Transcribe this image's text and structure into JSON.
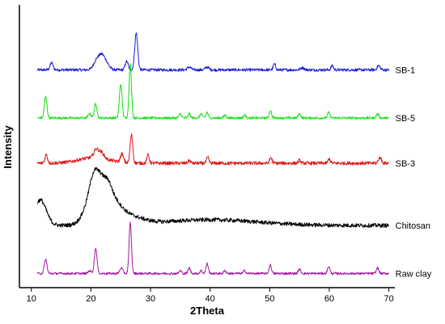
{
  "chart_data": {
    "type": "line",
    "xlabel": "2Theta",
    "ylabel": "Intensity",
    "xlim": [
      8,
      71
    ],
    "ylim": [
      0,
      100
    ],
    "xticks": [
      10,
      20,
      30,
      40,
      50,
      60,
      70
    ],
    "grid": false,
    "series": [
      {
        "name": "SB-1",
        "color": "#1a1adb",
        "baseline": 77,
        "noise": 0.5,
        "peaks": [
          [
            13.4,
            2.5,
            0.25
          ],
          [
            20.9,
            3,
            0.5
          ],
          [
            21.8,
            4.5,
            0.5
          ],
          [
            22.6,
            2,
            0.5
          ],
          [
            26.0,
            3,
            0.25
          ],
          [
            27.6,
            13,
            0.25
          ],
          [
            36.5,
            1,
            0.3
          ],
          [
            39.5,
            1,
            0.3
          ],
          [
            50.8,
            2,
            0.2
          ],
          [
            55.5,
            0.8,
            0.3
          ],
          [
            60.5,
            1.5,
            0.2
          ],
          [
            68.3,
            1.5,
            0.25
          ]
        ],
        "bumps": []
      },
      {
        "name": "SB-5",
        "color": "#11e011",
        "baseline": 60,
        "noise": 0.4,
        "peaks": [
          [
            12.4,
            7.5,
            0.22
          ],
          [
            19.8,
            1.5,
            0.25
          ],
          [
            20.8,
            5,
            0.22
          ],
          [
            25.0,
            12,
            0.22
          ],
          [
            26.6,
            19,
            0.2
          ],
          [
            35.0,
            1.5,
            0.2
          ],
          [
            36.5,
            1.5,
            0.2
          ],
          [
            38.5,
            1.5,
            0.2
          ],
          [
            39.5,
            2,
            0.2
          ],
          [
            42.5,
            1,
            0.2
          ],
          [
            45.8,
            1,
            0.2
          ],
          [
            50.1,
            2.5,
            0.2
          ],
          [
            55.0,
            1.5,
            0.2
          ],
          [
            59.9,
            2,
            0.2
          ],
          [
            68.1,
            1.5,
            0.2
          ]
        ],
        "bumps": []
      },
      {
        "name": "SB-3",
        "color": "#e01616",
        "baseline": 44,
        "noise": 0.6,
        "peaks": [
          [
            12.5,
            3,
            0.22
          ],
          [
            20.9,
            3,
            0.4
          ],
          [
            21.8,
            2,
            0.4
          ],
          [
            25.2,
            3,
            0.25
          ],
          [
            26.8,
            10,
            0.22
          ],
          [
            29.6,
            3,
            0.2
          ],
          [
            36.5,
            1,
            0.2
          ],
          [
            39.6,
            2,
            0.2
          ],
          [
            50.2,
            2,
            0.2
          ],
          [
            55.0,
            1,
            0.2
          ],
          [
            60.0,
            1.5,
            0.2
          ],
          [
            68.5,
            2,
            0.25
          ]
        ],
        "bumps": [
          [
            20.5,
            2,
            2.5
          ]
        ]
      },
      {
        "name": "Chitosan",
        "color": "#000000",
        "baseline": 22,
        "noise": 0.7,
        "peaks": [
          [
            20.4,
            3,
            0.6
          ],
          [
            23.0,
            2,
            0.5
          ]
        ],
        "bumps": [
          [
            11.5,
            9,
            1.0
          ],
          [
            21.0,
            16,
            1.5
          ],
          [
            23.5,
            6,
            1.5
          ],
          [
            26.0,
            3,
            2.5
          ],
          [
            40.0,
            2,
            8
          ]
        ]
      },
      {
        "name": "Raw clay",
        "color": "#a01ca0",
        "baseline": 5,
        "noise": 0.4,
        "peaks": [
          [
            12.4,
            5,
            0.22
          ],
          [
            19.8,
            1,
            0.25
          ],
          [
            20.8,
            9,
            0.22
          ],
          [
            25.1,
            2,
            0.25
          ],
          [
            26.6,
            18,
            0.2
          ],
          [
            35.0,
            1,
            0.2
          ],
          [
            36.5,
            2,
            0.2
          ],
          [
            38.5,
            1,
            0.2
          ],
          [
            39.5,
            3.5,
            0.2
          ],
          [
            42.5,
            1,
            0.2
          ],
          [
            45.8,
            1,
            0.2
          ],
          [
            50.1,
            3,
            0.2
          ],
          [
            55.0,
            1.5,
            0.2
          ],
          [
            59.9,
            2.5,
            0.2
          ],
          [
            68.1,
            2,
            0.2
          ]
        ],
        "bumps": []
      }
    ]
  }
}
